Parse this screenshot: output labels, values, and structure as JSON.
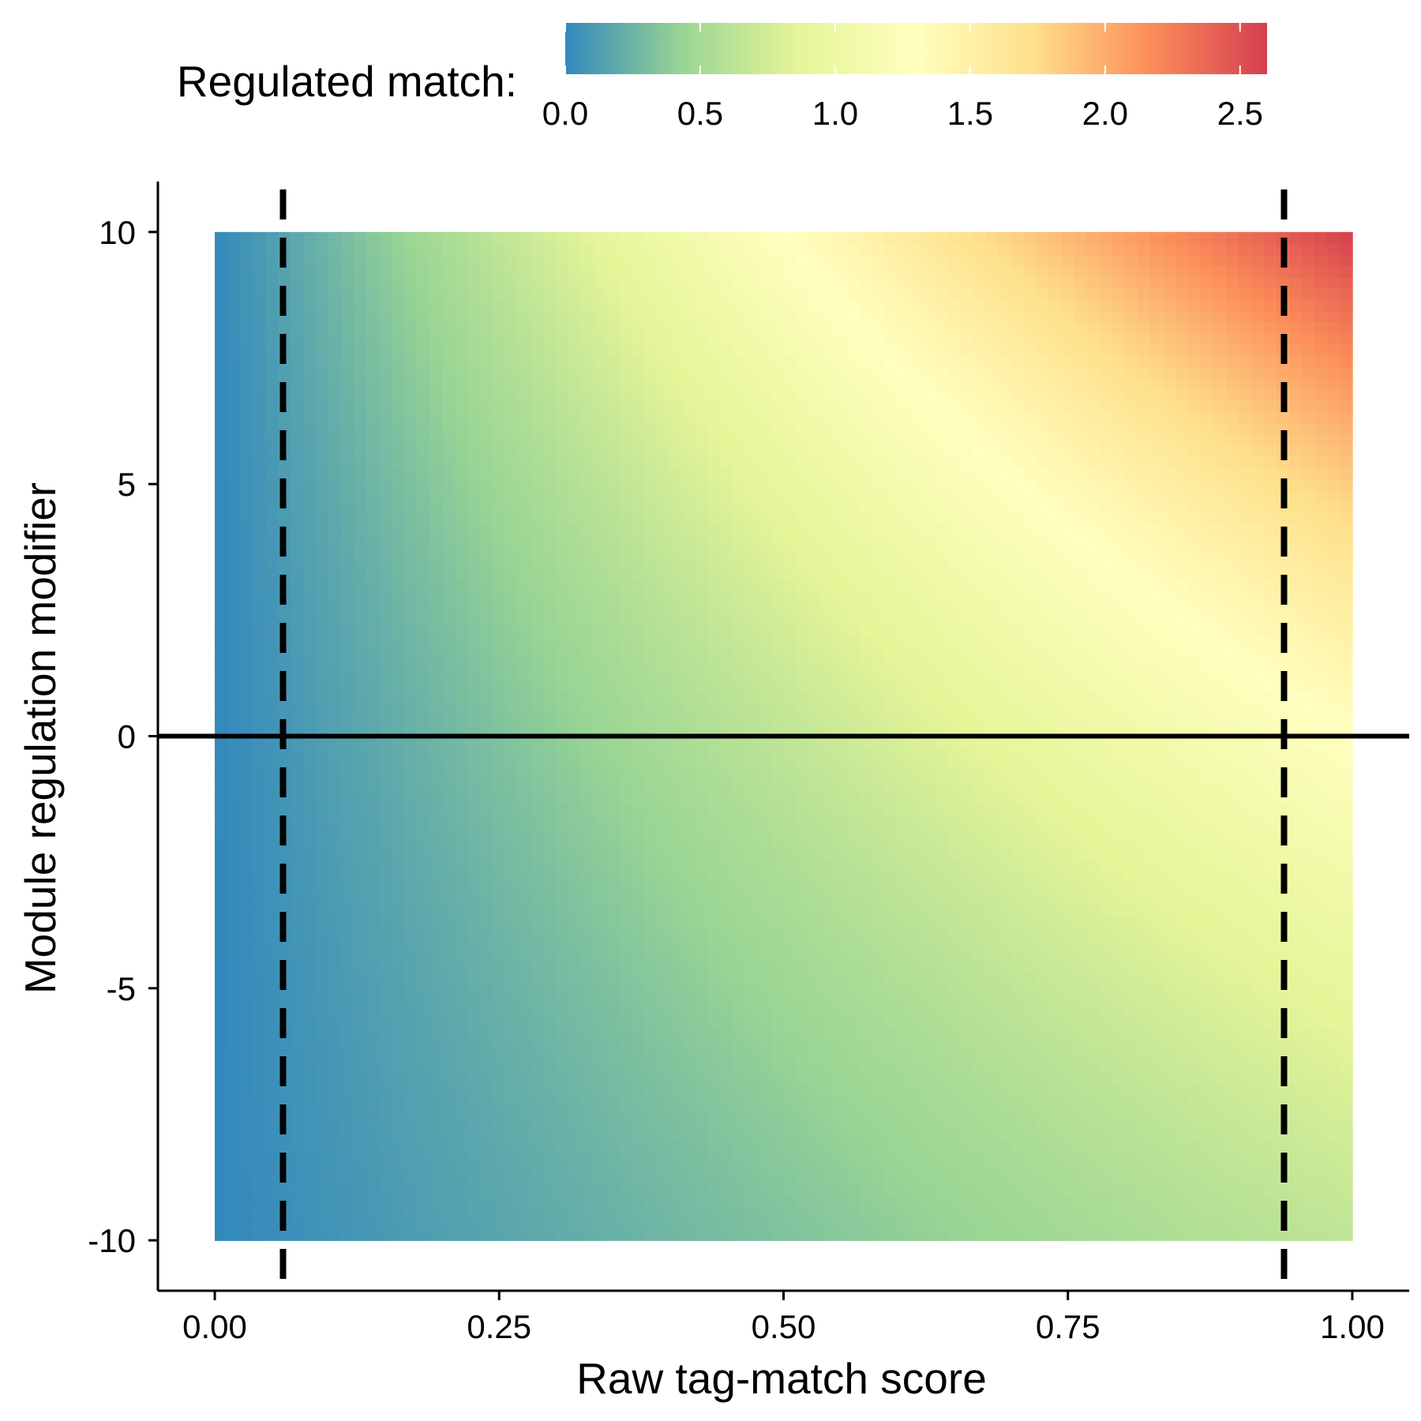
{
  "chart_data": {
    "type": "heatmap",
    "title": "",
    "xlabel": "Raw tag-match score",
    "ylabel": "Module regulation modifier",
    "xlim": [
      -0.05,
      1.05
    ],
    "ylim": [
      -11.0,
      11.0
    ],
    "x_range": [
      0.0,
      1.0
    ],
    "y_range": [
      -10,
      10
    ],
    "x_ticks": [
      0.0,
      0.25,
      0.5,
      0.75,
      1.0
    ],
    "x_tick_labels": [
      "0.00",
      "0.25",
      "0.50",
      "0.75",
      "1.00"
    ],
    "y_ticks": [
      -10,
      -5,
      0,
      5,
      10
    ],
    "y_tick_labels": [
      "-10",
      "-5",
      "0",
      "5",
      "10"
    ],
    "z_corners": {
      "x0_ymin": 0.0,
      "x0_ymax": 0.0,
      "x1_ymin": 0.65,
      "x1_ymax": 2.6,
      "x1_y0": 1.15
    },
    "colorbar": {
      "title": "Regulated match:",
      "range": [
        0.0,
        2.6
      ],
      "ticks": [
        0.0,
        0.5,
        1.0,
        1.5,
        2.0,
        2.5
      ],
      "tick_labels": [
        "0.0",
        "0.5",
        "1.0",
        "1.5",
        "2.0",
        "2.5"
      ],
      "colors": [
        "#3288bd",
        "#99d594",
        "#e6f598",
        "#ffffbf",
        "#fee08b",
        "#fc8d59",
        "#d53e4f"
      ],
      "position": "top"
    },
    "reference_lines": [
      {
        "orientation": "horizontal",
        "value": 0,
        "style": "solid"
      },
      {
        "orientation": "vertical",
        "value": 0.06,
        "style": "dashed"
      },
      {
        "orientation": "vertical",
        "value": 0.94,
        "style": "dashed"
      }
    ],
    "grid": false,
    "legend_position": "top"
  }
}
